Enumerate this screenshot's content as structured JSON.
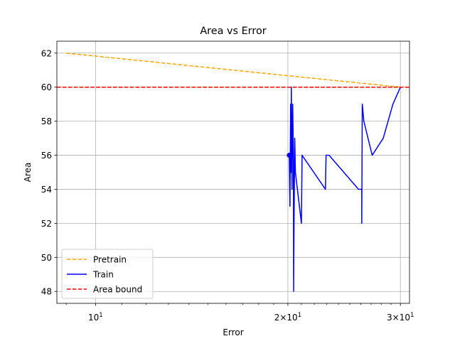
{
  "chart_data": {
    "type": "line",
    "title": "Area vs Error",
    "xlabel": "Error",
    "ylabel": "Area",
    "xscale": "log",
    "xlim": [
      8.7,
      31.0
    ],
    "ylim": [
      47.3,
      62.7
    ],
    "grid": true,
    "legend_position": "lower-left",
    "x_ticks": [
      {
        "value": 10,
        "label": "10",
        "exponent": "1"
      },
      {
        "value": 20,
        "label": "2×10",
        "exponent": "1"
      },
      {
        "value": 30,
        "label": "3×10",
        "exponent": "1"
      }
    ],
    "y_ticks": [
      48,
      50,
      52,
      54,
      56,
      58,
      60,
      62
    ],
    "series": [
      {
        "name": "Pretrain",
        "color": "#ffa500",
        "style": "dashed",
        "points": [
          [
            9.0,
            62.0
          ],
          [
            30.0,
            60.0
          ]
        ]
      },
      {
        "name": "Train",
        "color": "#0000ff",
        "style": "solid",
        "points": [
          [
            20.1,
            56.0
          ],
          [
            20.15,
            53.0
          ],
          [
            20.2,
            59.0
          ],
          [
            20.22,
            55.0
          ],
          [
            20.25,
            60.0
          ],
          [
            20.3,
            54.0
          ],
          [
            20.35,
            59.0
          ],
          [
            20.4,
            56.0
          ],
          [
            20.42,
            48.0
          ],
          [
            20.45,
            52.0
          ],
          [
            20.5,
            57.0
          ],
          [
            20.55,
            55.0
          ],
          [
            21.0,
            52.0
          ],
          [
            21.05,
            56.0
          ],
          [
            22.9,
            54.0
          ],
          [
            22.95,
            56.0
          ],
          [
            23.2,
            56.0
          ],
          [
            25.8,
            54.0
          ],
          [
            26.1,
            54.0
          ],
          [
            26.1,
            52.0
          ],
          [
            26.15,
            59.0
          ],
          [
            26.3,
            58.0
          ],
          [
            27.1,
            56.0
          ],
          [
            28.2,
            57.0
          ],
          [
            29.2,
            59.0
          ],
          [
            30.0,
            60.0
          ]
        ],
        "marker": [
          20.1,
          56.0
        ]
      },
      {
        "name": "Area bound",
        "color": "#ff0000",
        "style": "dashed",
        "y": 60.0
      }
    ]
  }
}
